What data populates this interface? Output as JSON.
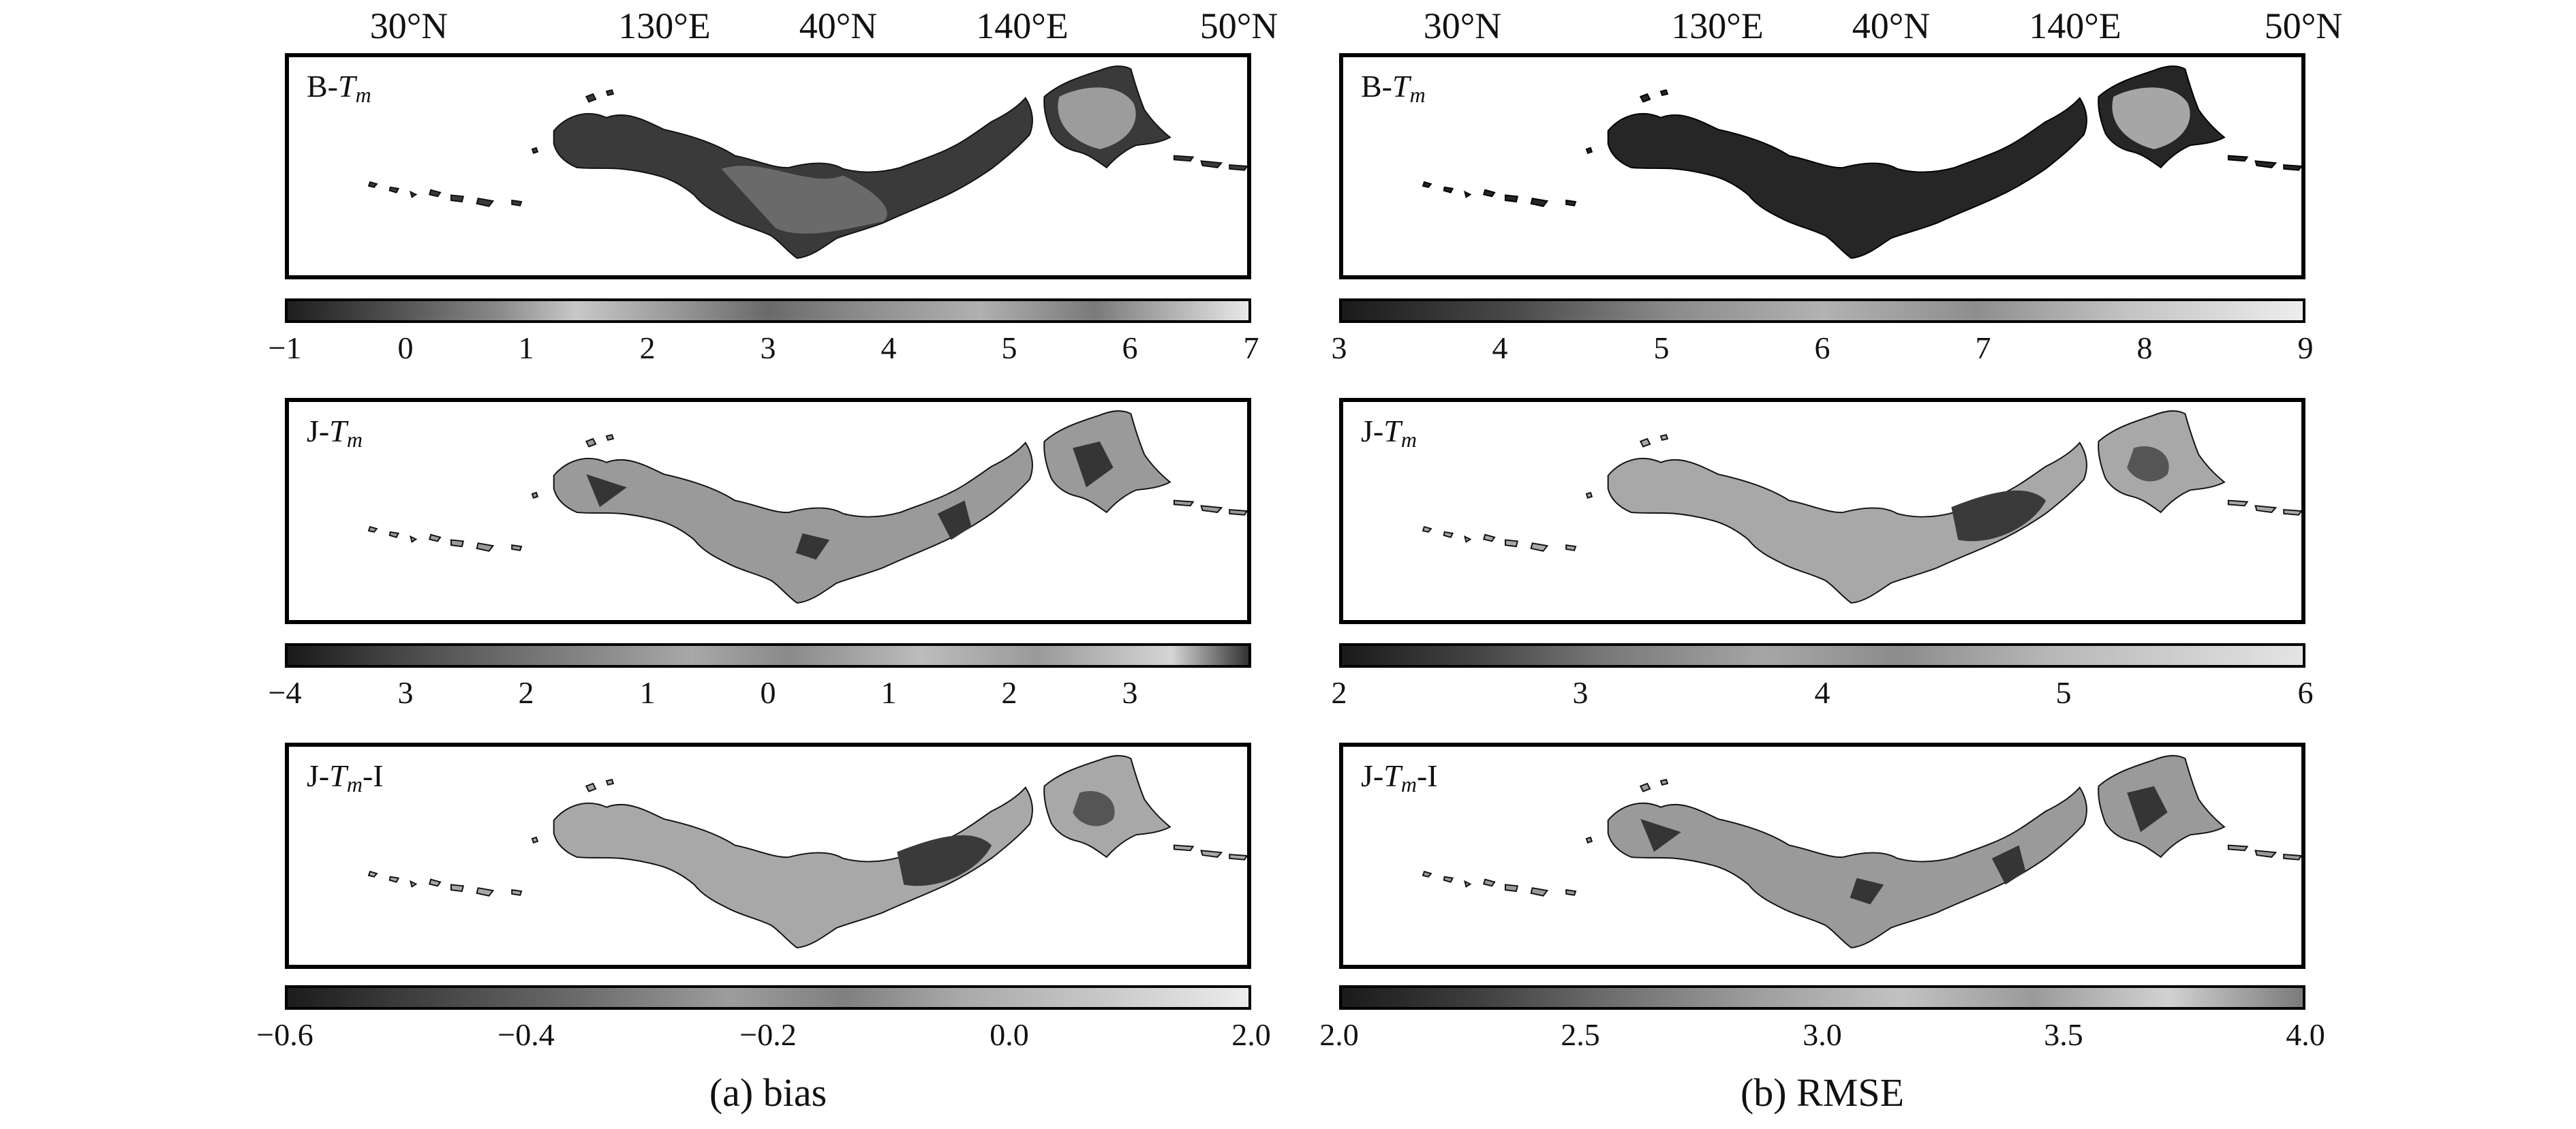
{
  "top_axis": {
    "labels": [
      "30°N",
      "130°E",
      "40°N",
      "140°E",
      "50°N"
    ]
  },
  "panels": {
    "bias": [
      {
        "label_prefix": "B-",
        "label_T": "T",
        "label_sub": "m",
        "label_suffix": ""
      },
      {
        "label_prefix": "J-",
        "label_T": "T",
        "label_sub": "m",
        "label_suffix": ""
      },
      {
        "label_prefix": "J-",
        "label_T": "T",
        "label_sub": "m",
        "label_suffix": "-I"
      }
    ],
    "rmse": [
      {
        "label_prefix": "B-",
        "label_T": "T",
        "label_sub": "m",
        "label_suffix": ""
      },
      {
        "label_prefix": "J-",
        "label_T": "T",
        "label_sub": "m",
        "label_suffix": ""
      },
      {
        "label_prefix": "J-",
        "label_T": "T",
        "label_sub": "m",
        "label_suffix": "-I"
      }
    ]
  },
  "colorbars": {
    "bias": [
      {
        "ticks": [
          "−1",
          "0",
          "1",
          "2",
          "3",
          "4",
          "5",
          "6",
          "7"
        ]
      },
      {
        "ticks": [
          "−4",
          "3",
          "2",
          "1",
          "0",
          "1",
          "2",
          "3"
        ]
      },
      {
        "ticks": [
          "−0.6",
          "−0.4",
          "−0.2",
          "0.0",
          "2.0"
        ]
      }
    ],
    "rmse": [
      {
        "ticks": [
          "3",
          "4",
          "5",
          "6",
          "7",
          "8",
          "9"
        ]
      },
      {
        "ticks": [
          "2",
          "3",
          "4",
          "5",
          "6"
        ]
      },
      {
        "ticks": [
          "2.0",
          "2.5",
          "3.0",
          "3.5",
          "4.0"
        ]
      }
    ]
  },
  "captions": {
    "bias": "(a) bias",
    "rmse": "(b) RMSE"
  },
  "colors": {
    "frame": "#000000",
    "land_dark": "#2e2e2e",
    "land_mid": "#8c8c8c",
    "land_light": "#b9b9b9",
    "background": "#ffffff"
  }
}
